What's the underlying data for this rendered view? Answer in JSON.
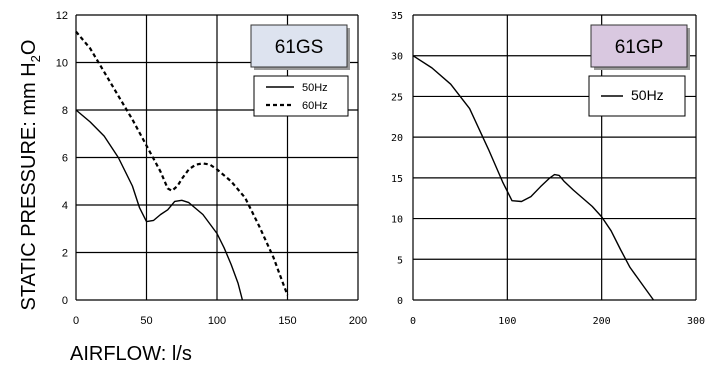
{
  "figure": {
    "ylabel": "STATIC PRESSURE: mm H",
    "ylabel_sub": "2",
    "ylabel_tail": "O",
    "xlabel": "AIRFLOW: l/s"
  },
  "chart_data": [
    {
      "type": "line",
      "title": "61GS",
      "title_box_color": "#dde3ef",
      "xlim": [
        0,
        200
      ],
      "ylim": [
        0,
        12
      ],
      "xticks": [
        0,
        50,
        100,
        150,
        200
      ],
      "yticks": [
        0,
        2,
        4,
        6,
        8,
        10,
        12
      ],
      "grid": true,
      "legend_position": "top-right",
      "series": [
        {
          "name": "50Hz",
          "style": "solid",
          "x": [
            0,
            10,
            20,
            30,
            40,
            45,
            50,
            55,
            60,
            65,
            70,
            75,
            80,
            90,
            100,
            105,
            110,
            115,
            118
          ],
          "y": [
            8.0,
            7.5,
            6.9,
            6.0,
            4.8,
            3.9,
            3.3,
            3.35,
            3.6,
            3.8,
            4.15,
            4.2,
            4.1,
            3.6,
            2.8,
            2.2,
            1.5,
            0.7,
            0.0
          ]
        },
        {
          "name": "60Hz",
          "style": "dashed",
          "x": [
            0,
            10,
            20,
            30,
            40,
            50,
            60,
            65,
            68,
            72,
            75,
            80,
            85,
            90,
            95,
            100,
            110,
            120,
            130,
            140,
            145,
            150
          ],
          "y": [
            11.3,
            10.6,
            9.6,
            8.6,
            7.6,
            6.5,
            5.4,
            4.7,
            4.6,
            4.8,
            5.1,
            5.5,
            5.7,
            5.75,
            5.7,
            5.5,
            5.0,
            4.3,
            3.1,
            1.8,
            1.0,
            0.2
          ]
        }
      ]
    },
    {
      "type": "line",
      "title": "61GP",
      "title_box_color": "#d9c8e0",
      "xlim": [
        0,
        300
      ],
      "ylim": [
        0,
        35
      ],
      "xticks": [
        0,
        100,
        200,
        300
      ],
      "yticks": [
        0,
        5,
        10,
        15,
        20,
        25,
        30,
        35
      ],
      "grid": true,
      "legend_position": "top-right",
      "series": [
        {
          "name": "50Hz",
          "style": "solid",
          "x": [
            0,
            20,
            40,
            60,
            80,
            95,
            105,
            115,
            125,
            135,
            145,
            150,
            155,
            160,
            170,
            190,
            200,
            210,
            220,
            230,
            245,
            255
          ],
          "y": [
            30,
            28.5,
            26.5,
            23.5,
            18.5,
            14.5,
            12.2,
            12.1,
            12.7,
            13.9,
            15.0,
            15.4,
            15.3,
            14.6,
            13.5,
            11.5,
            10.2,
            8.5,
            6.2,
            4.0,
            1.6,
            0.0
          ]
        }
      ]
    }
  ]
}
